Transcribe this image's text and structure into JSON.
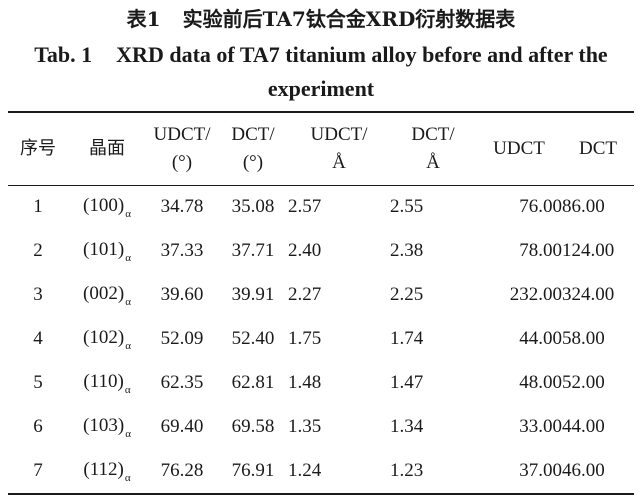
{
  "title_cn": {
    "label": "表1",
    "text": "实验前后TA7钛合金XRD衍射数据表"
  },
  "title_en": {
    "label": "Tab. 1",
    "text": "XRD data of TA7 titanium alloy before and after the experiment"
  },
  "table": {
    "headers": {
      "index": "序号",
      "plane": "晶面",
      "udct_angle": [
        "UDCT/",
        "(°)"
      ],
      "dct_angle": [
        "DCT/",
        "(°)"
      ],
      "udct_d": [
        "UDCT/",
        "Å"
      ],
      "dct_d": [
        "DCT/",
        "Å"
      ],
      "udct": "UDCT",
      "dct": "DCT"
    },
    "rows": [
      {
        "index": "1",
        "plane": "(100)",
        "phase": "α",
        "udct_angle": "34.78",
        "dct_angle": "35.08",
        "udct_d": "2.57",
        "dct_d": "2.55",
        "udct": "76.00",
        "dct": "86.00"
      },
      {
        "index": "2",
        "plane": "(101)",
        "phase": "α",
        "udct_angle": "37.33",
        "dct_angle": "37.71",
        "udct_d": "2.40",
        "dct_d": "2.38",
        "udct": "78.00",
        "dct": "124.00"
      },
      {
        "index": "3",
        "plane": "(002)",
        "phase": "α",
        "udct_angle": "39.60",
        "dct_angle": "39.91",
        "udct_d": "2.27",
        "dct_d": "2.25",
        "udct": "232.00",
        "dct": "324.00"
      },
      {
        "index": "4",
        "plane": "(102)",
        "phase": "α",
        "udct_angle": "52.09",
        "dct_angle": "52.40",
        "udct_d": "1.75",
        "dct_d": "1.74",
        "udct": "44.00",
        "dct": "58.00"
      },
      {
        "index": "5",
        "plane": "(110)",
        "phase": "α",
        "udct_angle": "62.35",
        "dct_angle": "62.81",
        "udct_d": "1.48",
        "dct_d": "1.47",
        "udct": "48.00",
        "dct": "52.00"
      },
      {
        "index": "6",
        "plane": "(103)",
        "phase": "α",
        "udct_angle": "69.40",
        "dct_angle": "69.58",
        "udct_d": "1.35",
        "dct_d": "1.34",
        "udct": "33.00",
        "dct": "44.00"
      },
      {
        "index": "7",
        "plane": "(112)",
        "phase": "α",
        "udct_angle": "76.28",
        "dct_angle": "76.91",
        "udct_d": "1.24",
        "dct_d": "1.23",
        "udct": "37.00",
        "dct": "46.00"
      }
    ]
  }
}
